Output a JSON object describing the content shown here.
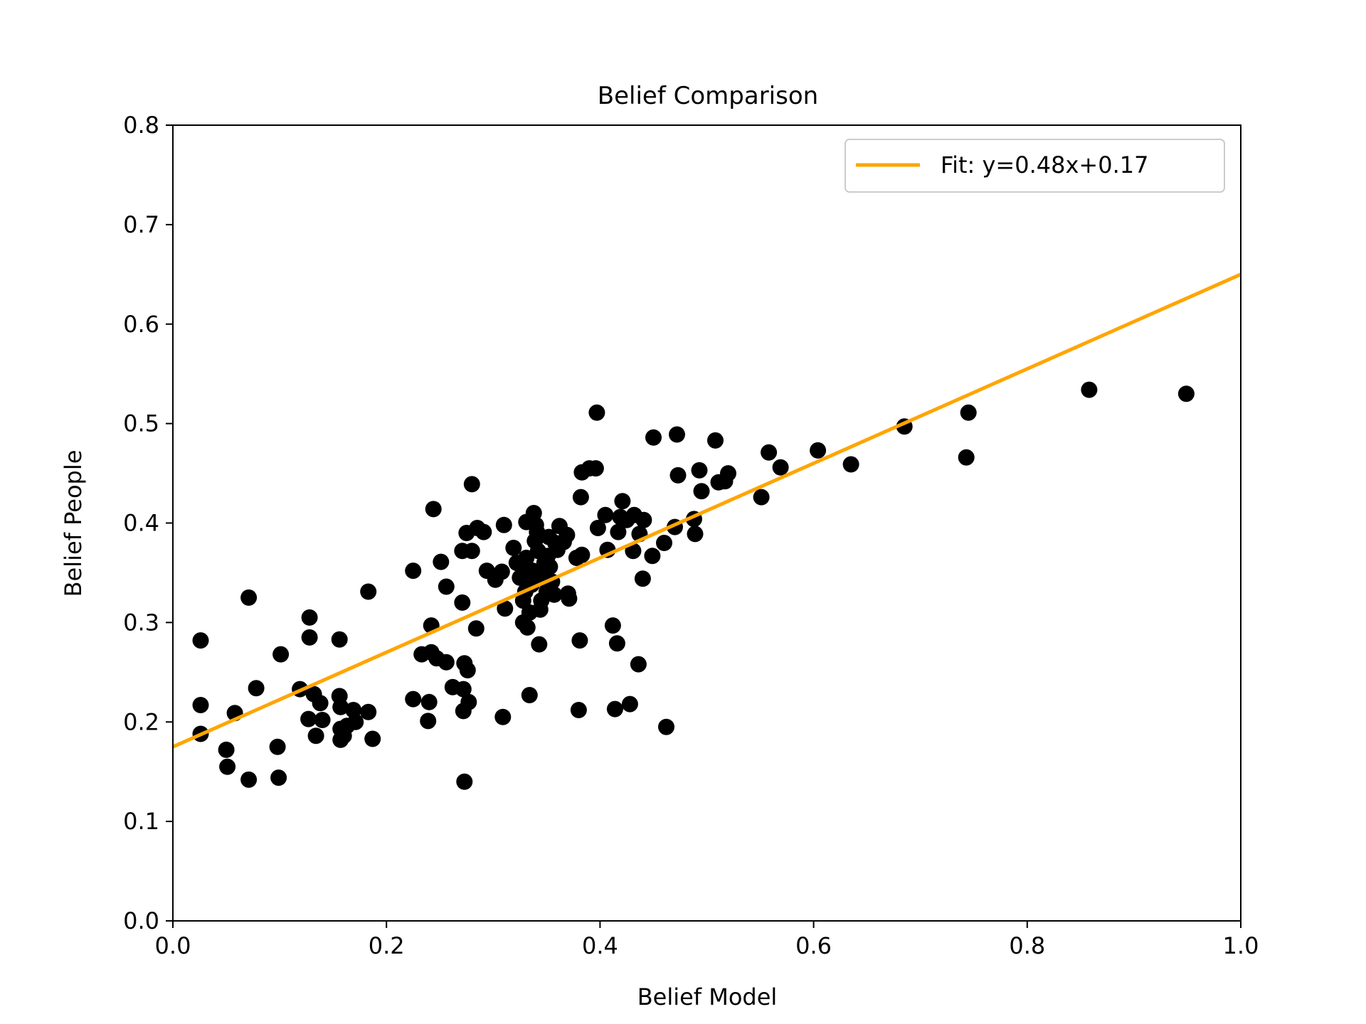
{
  "chart_data": {
    "type": "scatter",
    "title": "Belief Comparison",
    "xlabel": "Belief Model",
    "ylabel": "Belief People",
    "xlim": [
      0.0,
      1.0
    ],
    "ylim": [
      0.0,
      0.8
    ],
    "xticks": [
      "0.0",
      "0.2",
      "0.4",
      "0.6",
      "0.8",
      "1.0"
    ],
    "yticks": [
      "0.0",
      "0.1",
      "0.2",
      "0.3",
      "0.4",
      "0.5",
      "0.6",
      "0.7",
      "0.8"
    ],
    "grid": false,
    "legend_position": "top-right",
    "fit": {
      "label": "Fit: y=0.48x+0.17",
      "slope": 0.475,
      "intercept": 0.175,
      "color": "#FFA500"
    },
    "point_color": "#000000",
    "points": [
      [
        0.026,
        0.282
      ],
      [
        0.026,
        0.217
      ],
      [
        0.026,
        0.188
      ],
      [
        0.05,
        0.172
      ],
      [
        0.051,
        0.155
      ],
      [
        0.058,
        0.209
      ],
      [
        0.071,
        0.325
      ],
      [
        0.071,
        0.142
      ],
      [
        0.078,
        0.234
      ],
      [
        0.098,
        0.175
      ],
      [
        0.099,
        0.144
      ],
      [
        0.101,
        0.268
      ],
      [
        0.119,
        0.233
      ],
      [
        0.127,
        0.203
      ],
      [
        0.128,
        0.305
      ],
      [
        0.128,
        0.285
      ],
      [
        0.132,
        0.228
      ],
      [
        0.134,
        0.186
      ],
      [
        0.138,
        0.219
      ],
      [
        0.14,
        0.202
      ],
      [
        0.156,
        0.283
      ],
      [
        0.156,
        0.226
      ],
      [
        0.157,
        0.215
      ],
      [
        0.157,
        0.193
      ],
      [
        0.157,
        0.182
      ],
      [
        0.16,
        0.186
      ],
      [
        0.163,
        0.196
      ],
      [
        0.169,
        0.212
      ],
      [
        0.171,
        0.2
      ],
      [
        0.183,
        0.331
      ],
      [
        0.183,
        0.21
      ],
      [
        0.187,
        0.183
      ],
      [
        0.225,
        0.352
      ],
      [
        0.225,
        0.223
      ],
      [
        0.233,
        0.268
      ],
      [
        0.239,
        0.201
      ],
      [
        0.24,
        0.22
      ],
      [
        0.242,
        0.297
      ],
      [
        0.242,
        0.27
      ],
      [
        0.244,
        0.414
      ],
      [
        0.247,
        0.264
      ],
      [
        0.251,
        0.361
      ],
      [
        0.256,
        0.336
      ],
      [
        0.256,
        0.26
      ],
      [
        0.262,
        0.235
      ],
      [
        0.271,
        0.32
      ],
      [
        0.271,
        0.372
      ],
      [
        0.272,
        0.233
      ],
      [
        0.272,
        0.211
      ],
      [
        0.273,
        0.259
      ],
      [
        0.273,
        0.14
      ],
      [
        0.275,
        0.39
      ],
      [
        0.276,
        0.252
      ],
      [
        0.277,
        0.22
      ],
      [
        0.28,
        0.439
      ],
      [
        0.28,
        0.372
      ],
      [
        0.284,
        0.294
      ],
      [
        0.285,
        0.395
      ],
      [
        0.291,
        0.391
      ],
      [
        0.294,
        0.352
      ],
      [
        0.302,
        0.343
      ],
      [
        0.308,
        0.351
      ],
      [
        0.31,
        0.398
      ],
      [
        0.309,
        0.205
      ],
      [
        0.311,
        0.314
      ],
      [
        0.319,
        0.375
      ],
      [
        0.322,
        0.36
      ],
      [
        0.325,
        0.345
      ],
      [
        0.327,
        0.356
      ],
      [
        0.328,
        0.3
      ],
      [
        0.328,
        0.322
      ],
      [
        0.33,
        0.331
      ],
      [
        0.331,
        0.365
      ],
      [
        0.331,
        0.401
      ],
      [
        0.332,
        0.295
      ],
      [
        0.334,
        0.31
      ],
      [
        0.334,
        0.227
      ],
      [
        0.336,
        0.338
      ],
      [
        0.337,
        0.352
      ],
      [
        0.339,
        0.382
      ],
      [
        0.338,
        0.41
      ],
      [
        0.34,
        0.398
      ],
      [
        0.341,
        0.391
      ],
      [
        0.342,
        0.372
      ],
      [
        0.342,
        0.344
      ],
      [
        0.343,
        0.278
      ],
      [
        0.344,
        0.313
      ],
      [
        0.345,
        0.322
      ],
      [
        0.347,
        0.351
      ],
      [
        0.348,
        0.36
      ],
      [
        0.35,
        0.331
      ],
      [
        0.351,
        0.367
      ],
      [
        0.352,
        0.386
      ],
      [
        0.353,
        0.356
      ],
      [
        0.355,
        0.341
      ],
      [
        0.357,
        0.328
      ],
      [
        0.358,
        0.38
      ],
      [
        0.36,
        0.373
      ],
      [
        0.362,
        0.397
      ],
      [
        0.366,
        0.381
      ],
      [
        0.369,
        0.388
      ],
      [
        0.37,
        0.329
      ],
      [
        0.371,
        0.324
      ],
      [
        0.378,
        0.365
      ],
      [
        0.38,
        0.212
      ],
      [
        0.381,
        0.282
      ],
      [
        0.382,
        0.426
      ],
      [
        0.383,
        0.451
      ],
      [
        0.383,
        0.368
      ],
      [
        0.39,
        0.455
      ],
      [
        0.396,
        0.455
      ],
      [
        0.397,
        0.511
      ],
      [
        0.398,
        0.395
      ],
      [
        0.405,
        0.408
      ],
      [
        0.407,
        0.373
      ],
      [
        0.412,
        0.297
      ],
      [
        0.414,
        0.213
      ],
      [
        0.416,
        0.279
      ],
      [
        0.417,
        0.391
      ],
      [
        0.419,
        0.406
      ],
      [
        0.421,
        0.422
      ],
      [
        0.425,
        0.403
      ],
      [
        0.428,
        0.218
      ],
      [
        0.431,
        0.372
      ],
      [
        0.432,
        0.408
      ],
      [
        0.436,
        0.258
      ],
      [
        0.437,
        0.389
      ],
      [
        0.44,
        0.344
      ],
      [
        0.441,
        0.403
      ],
      [
        0.449,
        0.367
      ],
      [
        0.45,
        0.486
      ],
      [
        0.46,
        0.38
      ],
      [
        0.462,
        0.195
      ],
      [
        0.47,
        0.396
      ],
      [
        0.472,
        0.489
      ],
      [
        0.473,
        0.448
      ],
      [
        0.488,
        0.404
      ],
      [
        0.489,
        0.389
      ],
      [
        0.493,
        0.453
      ],
      [
        0.495,
        0.432
      ],
      [
        0.508,
        0.483
      ],
      [
        0.511,
        0.441
      ],
      [
        0.517,
        0.442
      ],
      [
        0.52,
        0.45
      ],
      [
        0.551,
        0.426
      ],
      [
        0.558,
        0.471
      ],
      [
        0.569,
        0.456
      ],
      [
        0.604,
        0.473
      ],
      [
        0.635,
        0.459
      ],
      [
        0.685,
        0.497
      ],
      [
        0.743,
        0.466
      ],
      [
        0.745,
        0.511
      ],
      [
        0.858,
        0.534
      ],
      [
        0.949,
        0.53
      ]
    ]
  }
}
